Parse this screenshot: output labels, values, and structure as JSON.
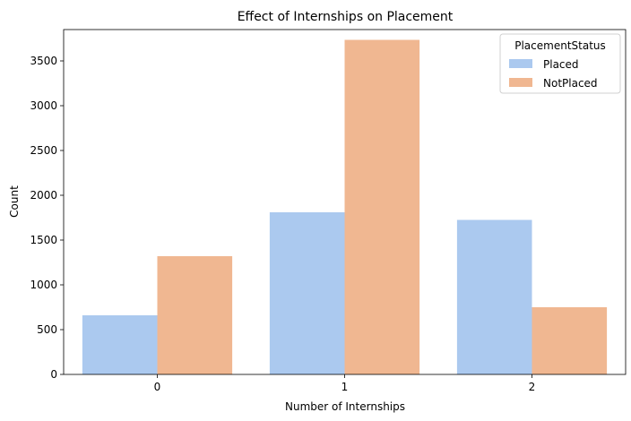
{
  "chart_data": {
    "type": "bar",
    "title": "Effect of Internships on Placement",
    "xlabel": "Number of Internships",
    "ylabel": "Count",
    "categories": [
      "0",
      "1",
      "2"
    ],
    "series": [
      {
        "name": "Placed",
        "values": [
          660,
          1810,
          1725
        ],
        "color": "#abc9ef"
      },
      {
        "name": "NotPlaced",
        "values": [
          1320,
          3735,
          750
        ],
        "color": "#f0b791"
      }
    ],
    "ylim": [
      0,
      3850
    ],
    "yticks": [
      0,
      500,
      1000,
      1500,
      2000,
      2500,
      3000,
      3500
    ],
    "legend": {
      "title": "PlacementStatus",
      "position": "top-right"
    },
    "grid": false
  }
}
